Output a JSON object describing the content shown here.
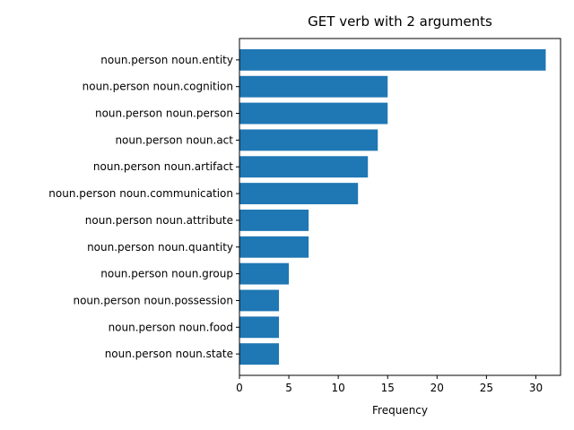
{
  "chart_data": {
    "type": "bar",
    "orientation": "horizontal",
    "title": "GET verb with 2 arguments",
    "xlabel": "Frequency",
    "ylabel": "",
    "xlim": [
      0,
      32.5
    ],
    "xticks": [
      0,
      5,
      10,
      15,
      20,
      25,
      30
    ],
    "grid": false,
    "legend": "none",
    "bar_color": "#1f77b4",
    "categories": [
      "noun.person noun.entity",
      "noun.person noun.cognition",
      "noun.person noun.person",
      "noun.person noun.act",
      "noun.person noun.artifact",
      "noun.person noun.communication",
      "noun.person noun.attribute",
      "noun.person noun.quantity",
      "noun.person noun.group",
      "noun.person noun.possession",
      "noun.person noun.food",
      "noun.person noun.state"
    ],
    "values": [
      31,
      15,
      15,
      14,
      13,
      12,
      7,
      7,
      5,
      4,
      4,
      4
    ]
  }
}
